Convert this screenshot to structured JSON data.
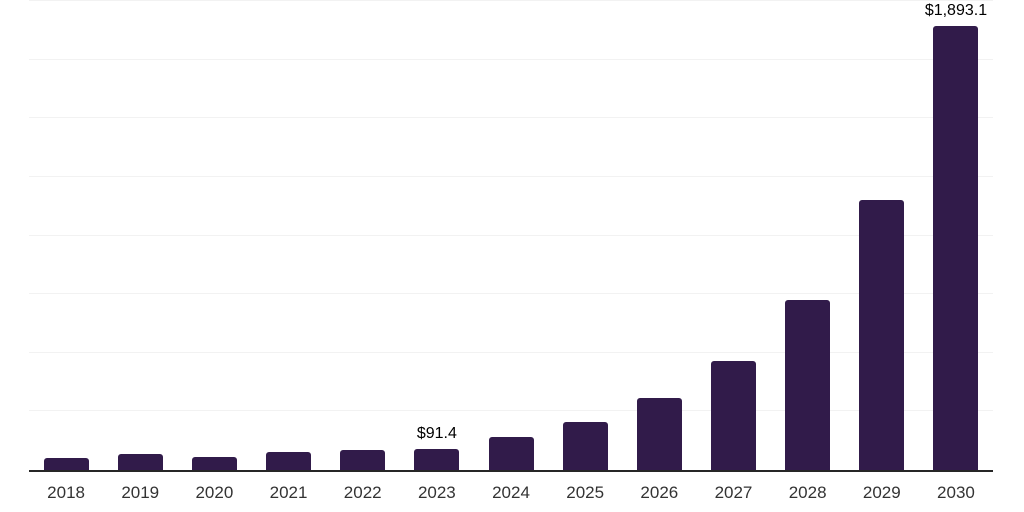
{
  "chart_data": {
    "type": "bar",
    "title": "",
    "xlabel": "",
    "ylabel": "",
    "categories": [
      "2018",
      "2019",
      "2020",
      "2021",
      "2022",
      "2023",
      "2024",
      "2025",
      "2026",
      "2027",
      "2028",
      "2029",
      "2030"
    ],
    "values": [
      50,
      68,
      56,
      75,
      84,
      91.4,
      139,
      205,
      305,
      465,
      726,
      1150,
      1893.1
    ],
    "data_labels": {
      "2023": "$91.4",
      "2030": "$1,893.1"
    },
    "ylim": [
      0,
      2000
    ],
    "gridline_interval": 250,
    "grid": "horizontal",
    "legend": "none",
    "y_axis_tick_labels_visible": false,
    "colors": {
      "bar": "#311b4a",
      "gridline": "#f2f2f2",
      "axis_line": "#262626",
      "tick_label": "#333333",
      "data_label": "#000000",
      "background": "#ffffff"
    }
  }
}
